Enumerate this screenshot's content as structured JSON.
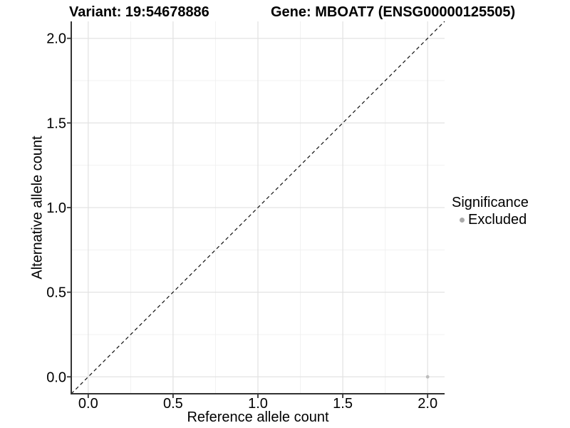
{
  "header": {
    "variant_title": "Variant: 19:54678886",
    "gene_title": "Gene: MBOAT7 (ENSG00000125505)"
  },
  "legend": {
    "title": "Significance",
    "items": [
      {
        "label": "Excluded",
        "color": "#a9a9a9"
      }
    ]
  },
  "chart_data": {
    "type": "scatter",
    "title": "Variant: 19:54678886 | Gene: MBOAT7 (ENSG00000125505)",
    "xlabel": "Reference allele count",
    "ylabel": "Alternative allele count",
    "x_ticks": [
      0,
      0.5,
      1,
      1.5,
      2
    ],
    "x_tick_labels": [
      "0.0",
      "0.5",
      "1.0",
      "1.5",
      "2.0"
    ],
    "y_ticks": [
      0,
      0.5,
      1,
      1.5,
      2
    ],
    "y_tick_labels": [
      "0.0",
      "0.5",
      "1.0",
      "1.5",
      "2.0"
    ],
    "xlim": [
      -0.1,
      2.1
    ],
    "ylim": [
      -0.1,
      2.1
    ],
    "grid": "major+minor",
    "legend_position": "right",
    "series": [
      {
        "name": "Excluded",
        "color": "#bdbdbd",
        "marker_radius": 2.4,
        "points": [
          {
            "x": 2,
            "y": 0
          }
        ]
      }
    ],
    "reference_line": {
      "slope": 1,
      "intercept": 0,
      "style": "dashed",
      "color": "#111111"
    }
  },
  "colors": {
    "grid_major": "#e3e3e3",
    "grid_minor": "#f1f1f1",
    "axis": "#333333",
    "tick": "#333333",
    "text": "#000000"
  }
}
